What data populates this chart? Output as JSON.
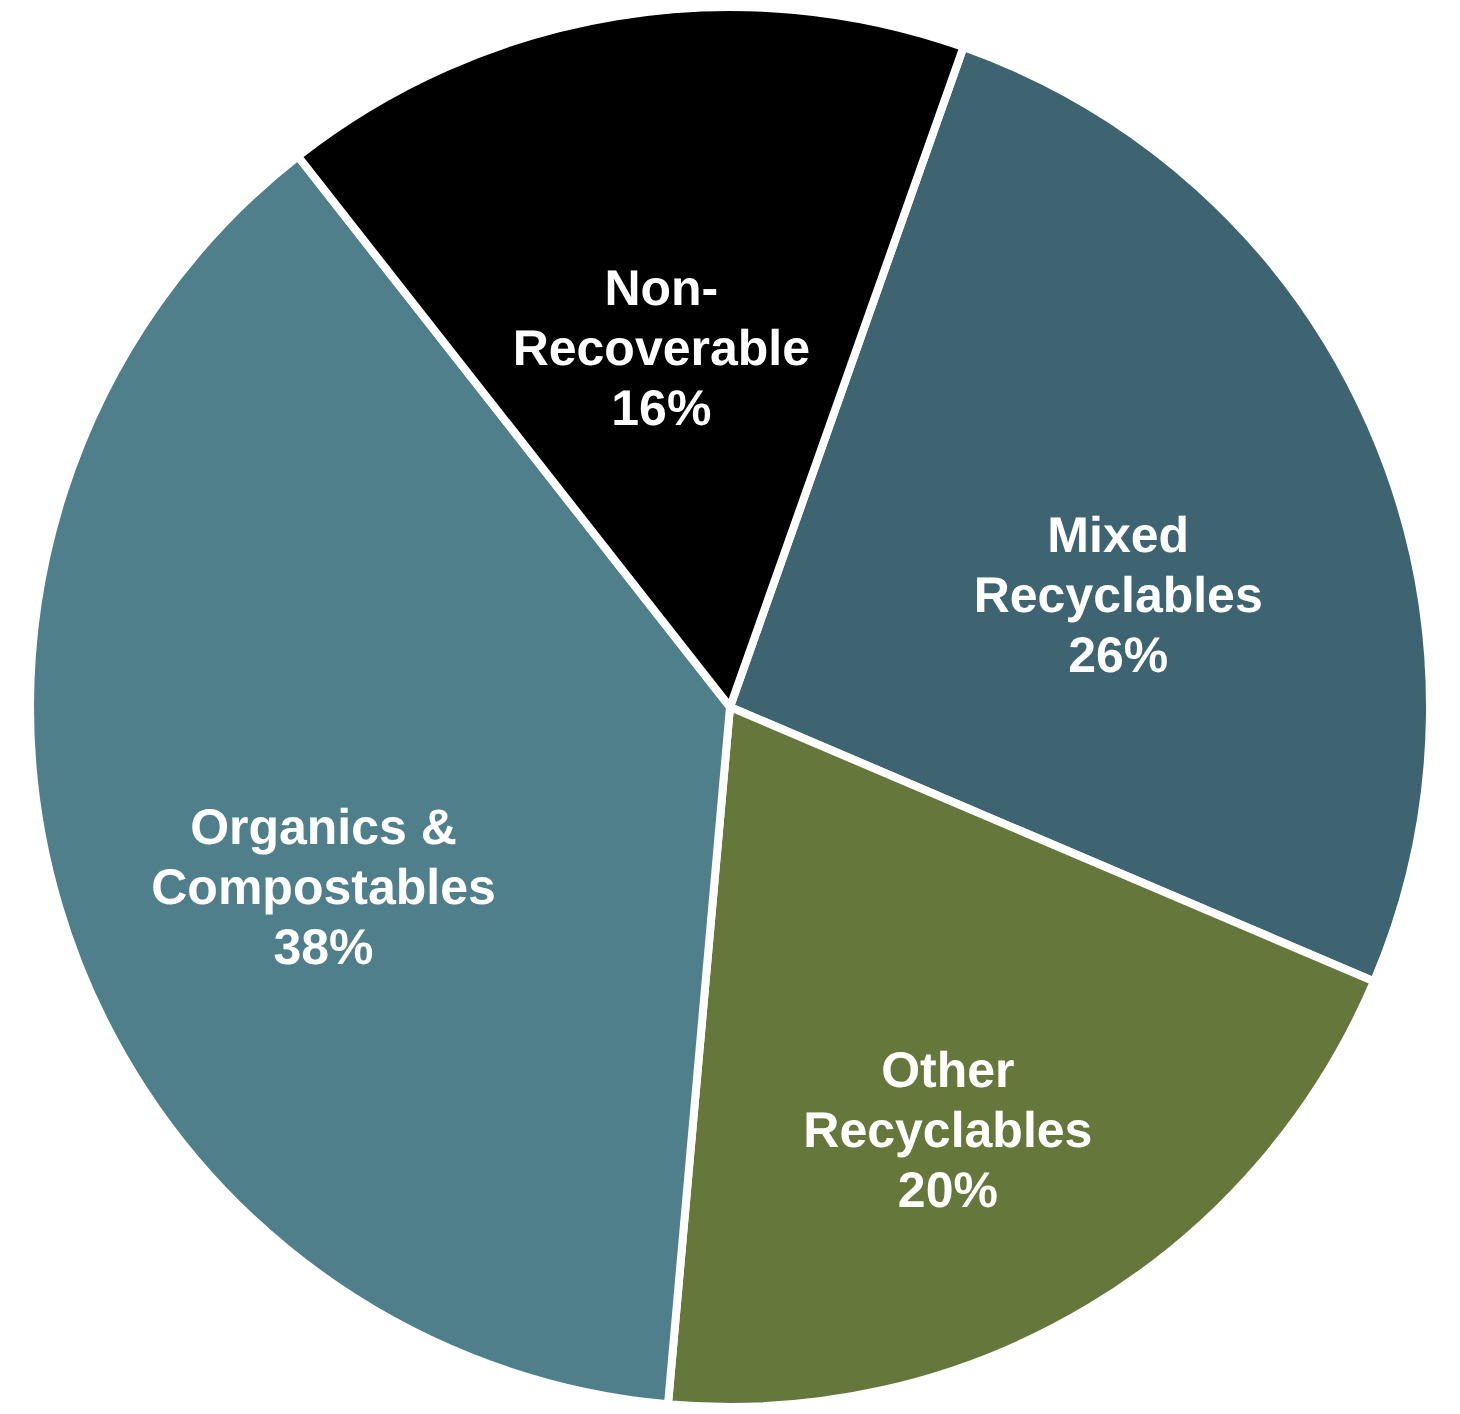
{
  "chart_data": {
    "type": "pie",
    "categories": [
      "Mixed Recyclables",
      "Other Recyclables",
      "Organics & Compostables",
      "Non-Recoverable"
    ],
    "values": [
      26,
      20,
      38,
      16
    ],
    "colors": [
      "#3d6470",
      "#66773c",
      "#4e7f8b",
      "#000000"
    ],
    "value_labels": [
      "26%",
      "20%",
      "38%",
      "16%"
    ]
  }
}
